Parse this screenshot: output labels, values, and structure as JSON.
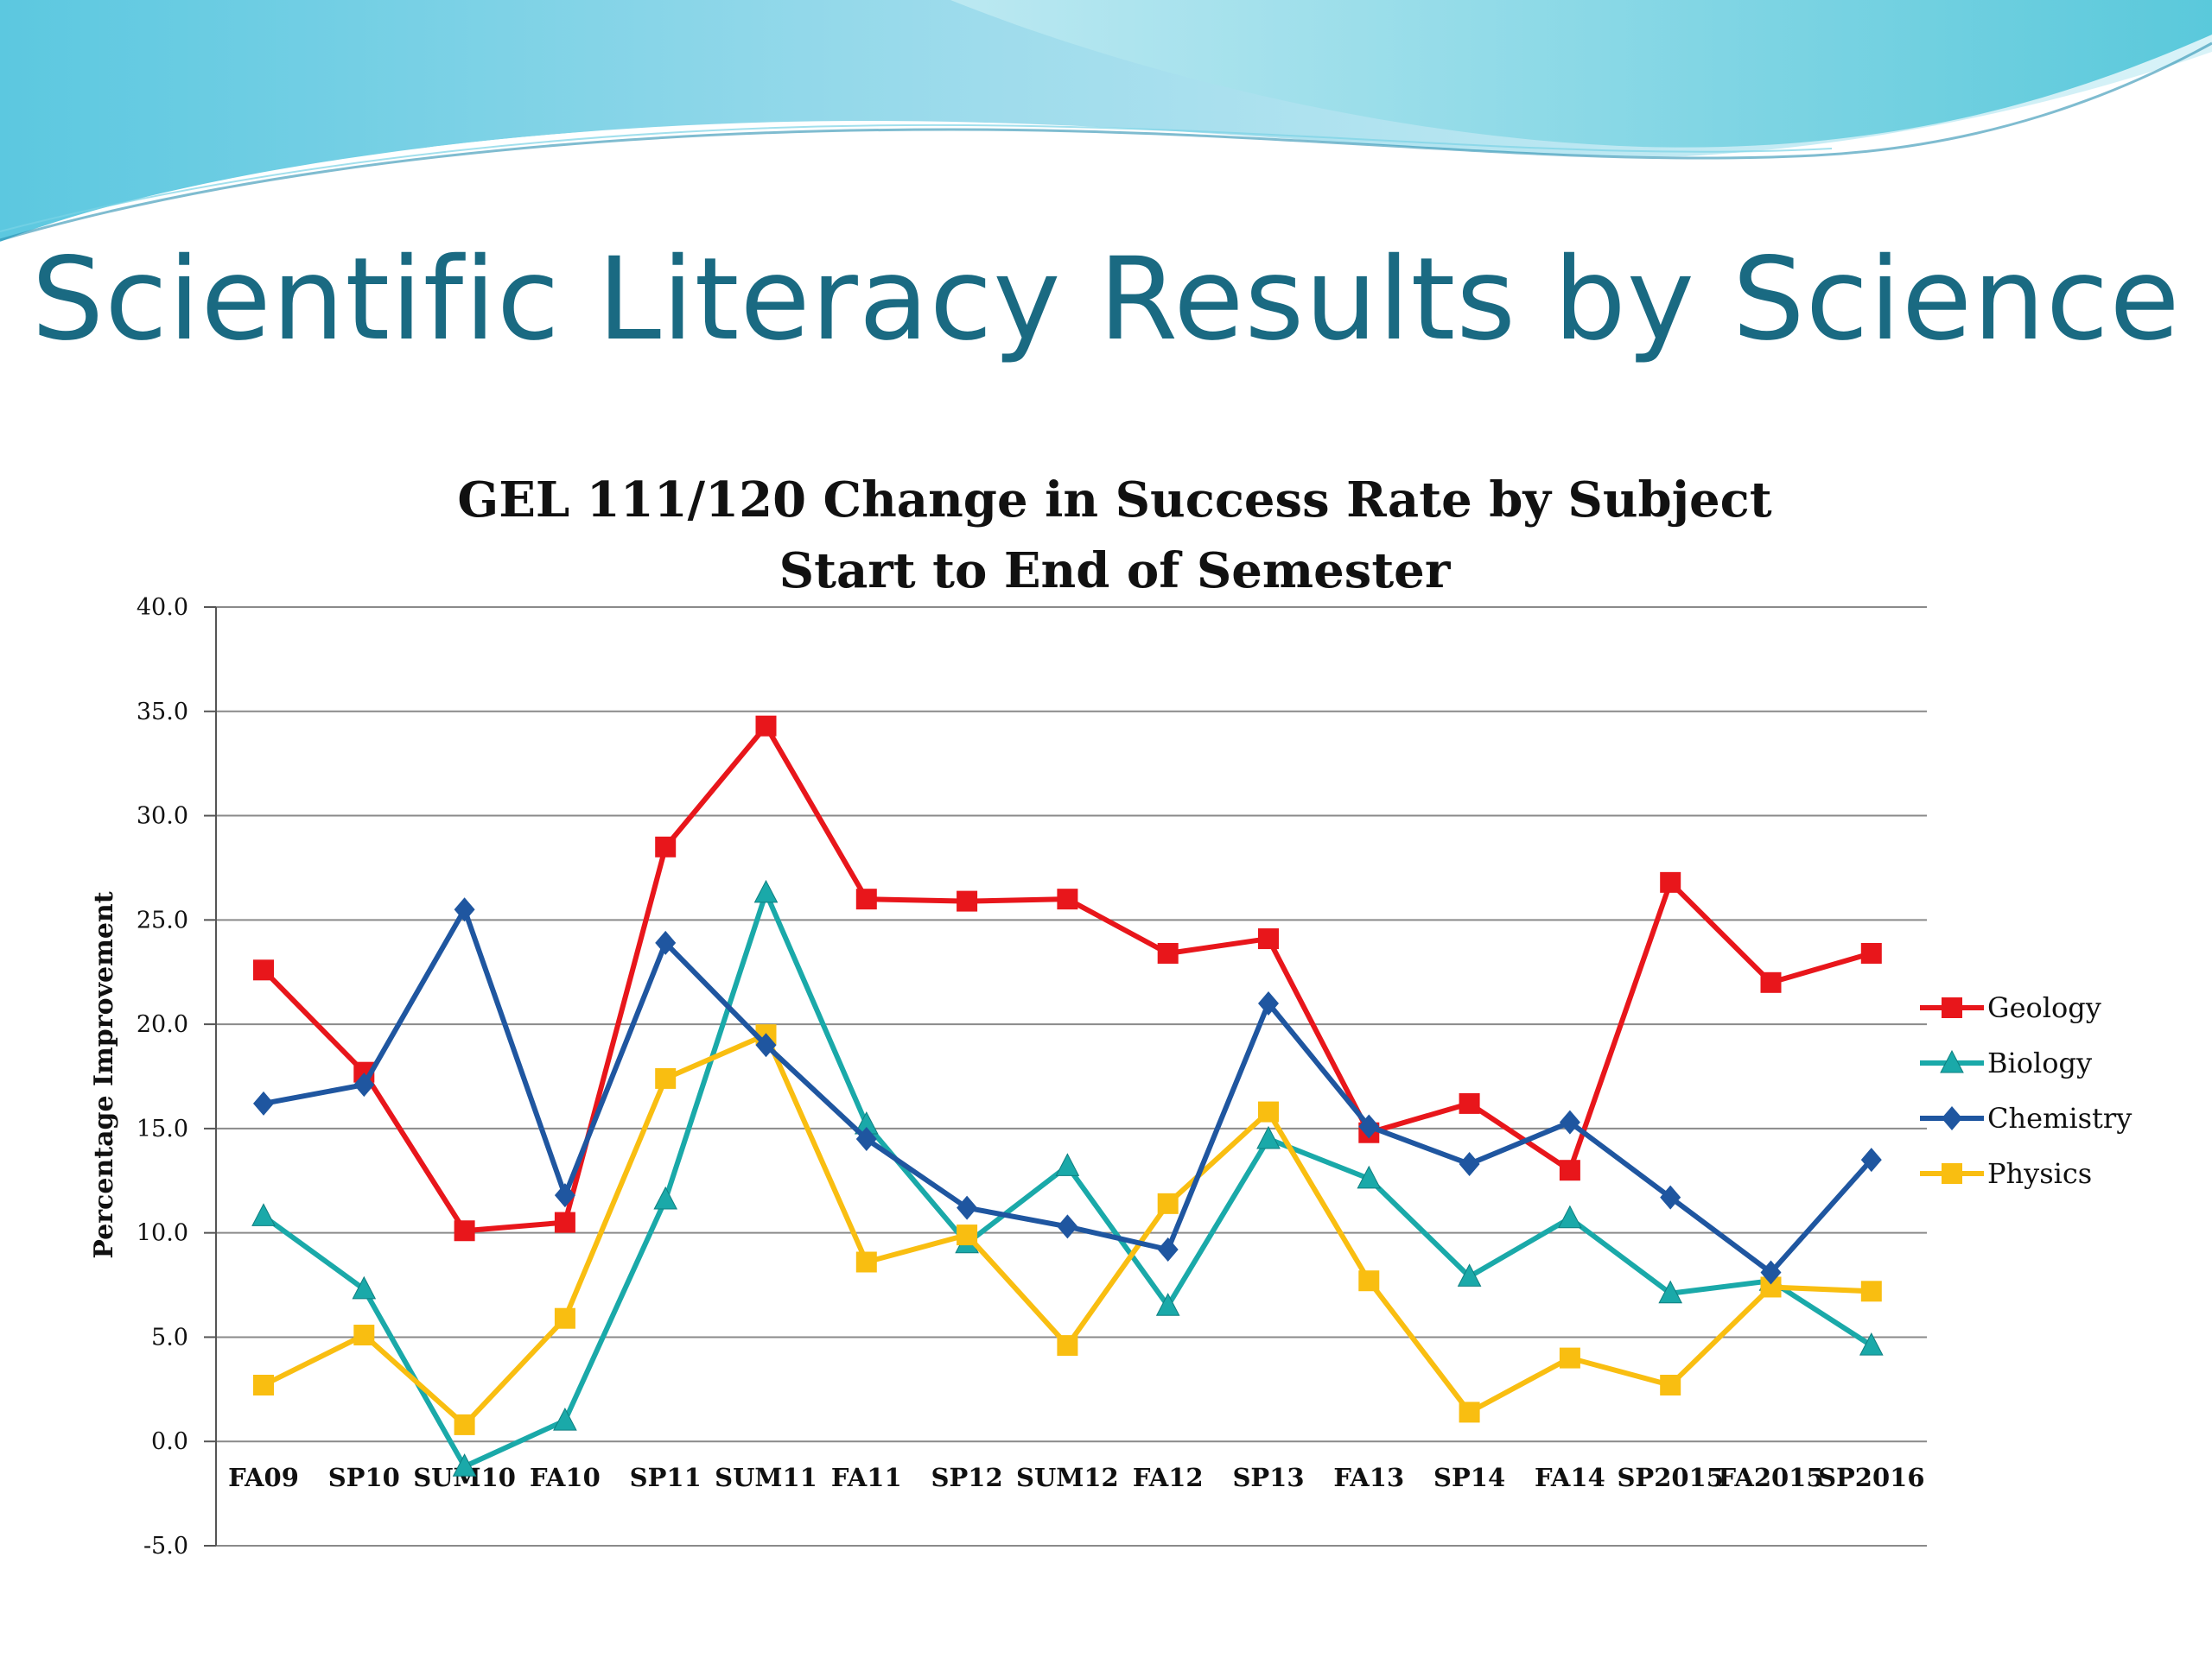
{
  "slide": {
    "title": "Scientific Literacy Results by Science"
  },
  "colors": {
    "title": "#1a6a82",
    "banner_light": "#bfeaf2",
    "banner_dark": "#4cc4d8"
  },
  "chart_data": {
    "type": "line",
    "title": "GEL 111/120 Change in Success Rate by Subject",
    "subtitle": "Start to End of Semester",
    "xlabel": "",
    "ylabel": "Percentage Improvement",
    "ylim": [
      -5.0,
      40.0
    ],
    "yticks": [
      "-5.0",
      "0.0",
      "5.0",
      "10.0",
      "15.0",
      "20.0",
      "25.0",
      "30.0",
      "35.0",
      "40.0"
    ],
    "grid": true,
    "legend_position": "right",
    "categories": [
      "FA09",
      "SP10",
      "SUM10",
      "FA10",
      "SP11",
      "SUM11",
      "FA11",
      "SP12",
      "SUM12",
      "FA12",
      "SP13",
      "FA13",
      "SP14",
      "FA14",
      "SP2015",
      "FA2015",
      "SP2016"
    ],
    "series": [
      {
        "name": "Geology",
        "color": "#e8161b",
        "marker": "square",
        "values": [
          22.6,
          17.7,
          10.1,
          10.5,
          28.5,
          34.3,
          26.0,
          25.9,
          26.0,
          23.4,
          24.1,
          14.8,
          16.2,
          13.0,
          26.8,
          22.0,
          23.4
        ]
      },
      {
        "name": "Biology",
        "color": "#1aa9a9",
        "marker": "triangle",
        "values": [
          10.8,
          7.3,
          -1.2,
          1.0,
          11.6,
          26.3,
          15.2,
          9.5,
          13.2,
          6.5,
          14.5,
          12.6,
          7.9,
          10.7,
          7.1,
          7.7,
          4.6
        ]
      },
      {
        "name": "Chemistry",
        "color": "#1f56a0",
        "marker": "diamond",
        "values": [
          16.2,
          17.1,
          25.5,
          11.8,
          23.9,
          19.0,
          14.5,
          11.2,
          10.3,
          9.2,
          21.0,
          15.1,
          13.3,
          15.3,
          11.7,
          8.1,
          13.5
        ]
      },
      {
        "name": "Physics",
        "color": "#f9be11",
        "marker": "square",
        "values": [
          2.7,
          5.1,
          0.8,
          5.9,
          17.4,
          19.5,
          8.6,
          9.9,
          4.6,
          11.4,
          15.8,
          7.7,
          1.4,
          4.0,
          2.7,
          7.4,
          7.2
        ]
      }
    ]
  }
}
